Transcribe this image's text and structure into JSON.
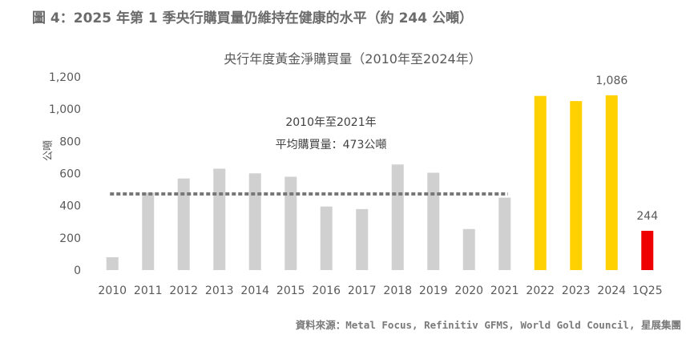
{
  "figure_heading": "圖 4：2025 年第 1 季央行購買量仍維持在健康的水平（約 244 公噸）",
  "source_note": "資料來源：Metal Focus, Refinitiv GFMS, World Gold Council, 星展集團",
  "colors": {
    "bar_grey": "#d0d0d0",
    "bar_yellow": "#ffd100",
    "bar_red": "#ee0000",
    "average_line": "#777777",
    "text": "#595959"
  },
  "chart_data": {
    "type": "bar",
    "title": "央行年度黃金淨購買量（2010年至2024年）",
    "xlabel": "",
    "ylabel": "公噸",
    "ylim": [
      0,
      1200
    ],
    "yticks": [
      0,
      200,
      400,
      600,
      800,
      1000,
      1200
    ],
    "ytick_labels": [
      "0",
      "200",
      "400",
      "600",
      "800",
      "1,000",
      "1,200"
    ],
    "categories": [
      "2010",
      "2011",
      "2012",
      "2013",
      "2014",
      "2015",
      "2016",
      "2017",
      "2018",
      "2019",
      "2020",
      "2021",
      "2022",
      "2023",
      "2024",
      "1Q25"
    ],
    "values": [
      80,
      481,
      569,
      630,
      601,
      580,
      395,
      379,
      656,
      605,
      255,
      450,
      1082,
      1050,
      1086,
      244
    ],
    "bar_colors": [
      "grey",
      "grey",
      "grey",
      "grey",
      "grey",
      "grey",
      "grey",
      "grey",
      "grey",
      "grey",
      "grey",
      "grey",
      "yellow",
      "yellow",
      "yellow",
      "red"
    ],
    "data_labels": [
      {
        "category": "2024",
        "text": "1,086"
      },
      {
        "category": "1Q25",
        "text": "244"
      }
    ],
    "average_line": {
      "value": 473,
      "from_category": "2010",
      "to_category": "2021",
      "style": "dashed",
      "label_line1": "2010年至2021年",
      "label_line2": "平均購買量：473公噸"
    },
    "grid": false,
    "legend": "none"
  }
}
